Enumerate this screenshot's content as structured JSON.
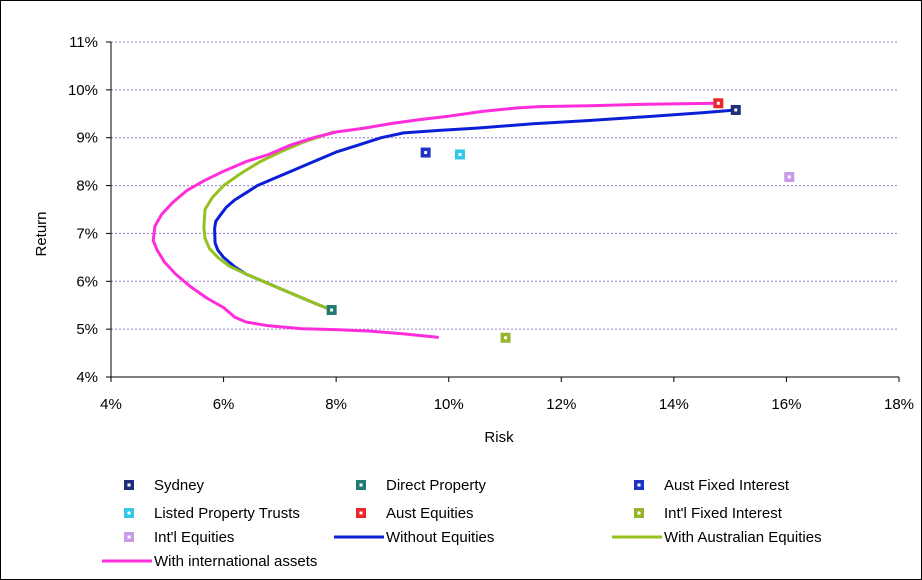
{
  "chart_data": {
    "type": "scatter",
    "title": "",
    "xlabel": "Risk",
    "ylabel": "Return",
    "xlim": [
      0.04,
      0.18
    ],
    "ylim": [
      0.04,
      0.11
    ],
    "x_ticks": [
      {
        "v": 0.04,
        "label": "4%"
      },
      {
        "v": 0.06,
        "label": "6%"
      },
      {
        "v": 0.08,
        "label": "8%"
      },
      {
        "v": 0.1,
        "label": "10%"
      },
      {
        "v": 0.12,
        "label": "12%"
      },
      {
        "v": 0.14,
        "label": "14%"
      },
      {
        "v": 0.16,
        "label": "16%"
      },
      {
        "v": 0.18,
        "label": "18%"
      }
    ],
    "y_ticks": [
      {
        "v": 0.04,
        "label": "4%"
      },
      {
        "v": 0.05,
        "label": "5%"
      },
      {
        "v": 0.06,
        "label": "6%"
      },
      {
        "v": 0.07,
        "label": "7%"
      },
      {
        "v": 0.08,
        "label": "8%"
      },
      {
        "v": 0.09,
        "label": "9%"
      },
      {
        "v": 0.1,
        "label": "10%"
      },
      {
        "v": 0.11,
        "label": "11%"
      }
    ],
    "grid": "horizontal",
    "legend_position": "bottom",
    "points": [
      {
        "name": "Sydney",
        "x": 0.151,
        "y": 0.0958,
        "color": "#1f2f7a"
      },
      {
        "name": "Direct Property",
        "x": 0.0792,
        "y": 0.054,
        "color": "#237a73"
      },
      {
        "name": "Aust Fixed Interest",
        "x": 0.0959,
        "y": 0.0869,
        "color": "#1c34c8"
      },
      {
        "name": "Listed Property Trusts",
        "x": 0.102,
        "y": 0.0865,
        "color": "#33c7ea"
      },
      {
        "name": "Aust Equities",
        "x": 0.1479,
        "y": 0.0972,
        "color": "#e8282a"
      },
      {
        "name": "Int'l Fixed Interest",
        "x": 0.1101,
        "y": 0.0482,
        "color": "#95b62a"
      },
      {
        "name": "Int'l Equities",
        "x": 0.1605,
        "y": 0.0818,
        "color": "#c89be8"
      }
    ],
    "lines": [
      {
        "name": "Without Equities",
        "color": "#0b1fd6",
        "x": [
          0.0792,
          0.076,
          0.073,
          0.07,
          0.067,
          0.064,
          0.062,
          0.06,
          0.059,
          0.0585,
          0.0584,
          0.0586,
          0.0592,
          0.0605,
          0.062,
          0.064,
          0.066,
          0.069,
          0.072,
          0.076,
          0.08,
          0.084,
          0.088,
          0.092,
          0.098,
          0.105,
          0.115,
          0.125,
          0.135,
          0.145,
          0.151
        ],
        "y": [
          0.054,
          0.0555,
          0.057,
          0.0585,
          0.06,
          0.0615,
          0.063,
          0.065,
          0.0665,
          0.068,
          0.071,
          0.0725,
          0.0735,
          0.0755,
          0.077,
          0.0785,
          0.08,
          0.0815,
          0.083,
          0.085,
          0.087,
          0.0885,
          0.09,
          0.091,
          0.0915,
          0.092,
          0.0929,
          0.0936,
          0.0944,
          0.0952,
          0.0958
        ]
      },
      {
        "name": "With Australian Equities",
        "color": "#95c11f",
        "x": [
          0.0792,
          0.076,
          0.073,
          0.07,
          0.067,
          0.064,
          0.061,
          0.059,
          0.0575,
          0.0567,
          0.0565,
          0.0567,
          0.058,
          0.06,
          0.063,
          0.0665,
          0.07,
          0.074,
          0.077,
          0.0795
        ],
        "y": [
          0.054,
          0.0555,
          0.057,
          0.0585,
          0.06,
          0.0615,
          0.0632,
          0.065,
          0.0668,
          0.069,
          0.0712,
          0.075,
          0.0775,
          0.08,
          0.0825,
          0.085,
          0.087,
          0.089,
          0.0902,
          0.0912
        ]
      },
      {
        "name": "With international assets",
        "color": "#ff2ddc",
        "x": [
          0.098,
          0.092,
          0.086,
          0.08,
          0.074,
          0.068,
          0.064,
          0.062,
          0.06,
          0.057,
          0.054,
          0.0515,
          0.0495,
          0.0482,
          0.0475,
          0.0478,
          0.049,
          0.051,
          0.0535,
          0.0565,
          0.06,
          0.064,
          0.068,
          0.072,
          0.076,
          0.08,
          0.085,
          0.09,
          0.095,
          0.1,
          0.106,
          0.112,
          0.116,
          0.125,
          0.135,
          0.148
        ],
        "y": [
          0.0483,
          0.049,
          0.0496,
          0.0499,
          0.0501,
          0.0507,
          0.0515,
          0.0525,
          0.0545,
          0.0565,
          0.059,
          0.0615,
          0.064,
          0.0665,
          0.0685,
          0.0715,
          0.074,
          0.0765,
          0.079,
          0.081,
          0.083,
          0.085,
          0.0865,
          0.0885,
          0.09,
          0.0912,
          0.092,
          0.093,
          0.0938,
          0.0945,
          0.0955,
          0.0962,
          0.0965,
          0.0967,
          0.097,
          0.0972
        ]
      }
    ],
    "legend": [
      {
        "label": "Sydney",
        "kind": "marker",
        "color": "#1f2f7a"
      },
      {
        "label": "Direct Property",
        "kind": "marker",
        "color": "#237a73"
      },
      {
        "label": "Aust Fixed Interest",
        "kind": "marker",
        "color": "#1c34c8"
      },
      {
        "label": "Listed Property Trusts",
        "kind": "marker",
        "color": "#33c7ea"
      },
      {
        "label": "Aust Equities",
        "kind": "marker",
        "color": "#e8282a"
      },
      {
        "label": "Int'l Fixed Interest",
        "kind": "marker",
        "color": "#95b62a"
      },
      {
        "label": "Int'l Equities",
        "kind": "marker",
        "color": "#c89be8"
      },
      {
        "label": "Without Equities",
        "kind": "line",
        "color": "#0b1fd6"
      },
      {
        "label": "With Australian Equities",
        "kind": "line",
        "color": "#95c11f"
      },
      {
        "label": "With international assets",
        "kind": "line",
        "color": "#ff2ddc"
      }
    ]
  }
}
